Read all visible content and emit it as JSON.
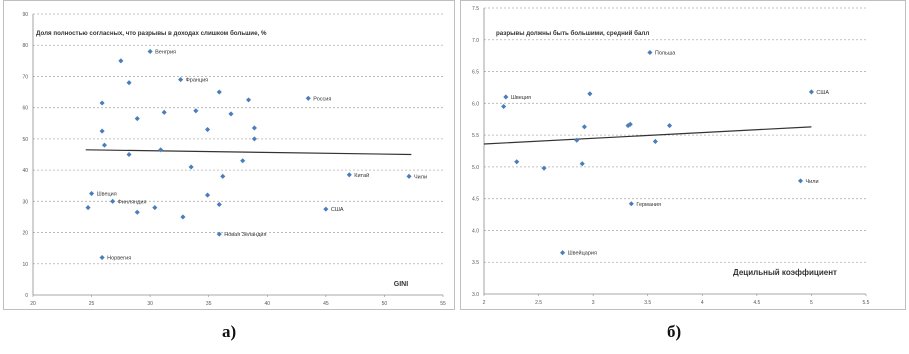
{
  "panel_labels": {
    "a": "а)",
    "b": "б)"
  },
  "chart_data": [
    {
      "type": "scatter",
      "title": "Доля полностью согласных, что разрывы в доходах слишком большие, %",
      "xlabel": "GINI",
      "ylabel": "",
      "xlim": [
        20,
        55
      ],
      "ylim": [
        0,
        90
      ],
      "xticks": [
        20,
        25,
        30,
        35,
        40,
        45,
        50,
        55
      ],
      "yticks": [
        0,
        10,
        20,
        30,
        40,
        50,
        60,
        70,
        80,
        90
      ],
      "grid": true,
      "color": "#4a7ebb",
      "points": [
        {
          "x": 24.7,
          "y": 28,
          "label": ""
        },
        {
          "x": 25.0,
          "y": 32.5,
          "label": "Швеция"
        },
        {
          "x": 25.9,
          "y": 52.5,
          "label": ""
        },
        {
          "x": 25.9,
          "y": 61.5,
          "label": ""
        },
        {
          "x": 26.1,
          "y": 48,
          "label": ""
        },
        {
          "x": 25.9,
          "y": 12,
          "label": "Норвегия"
        },
        {
          "x": 26.8,
          "y": 30,
          "label": "Финляндия"
        },
        {
          "x": 27.5,
          "y": 75,
          "label": ""
        },
        {
          "x": 28.2,
          "y": 68,
          "label": ""
        },
        {
          "x": 28.2,
          "y": 45,
          "label": ""
        },
        {
          "x": 28.9,
          "y": 56.5,
          "label": ""
        },
        {
          "x": 28.9,
          "y": 26.5,
          "label": ""
        },
        {
          "x": 30.0,
          "y": 78,
          "label": "Венгрия"
        },
        {
          "x": 30.4,
          "y": 28,
          "label": ""
        },
        {
          "x": 30.9,
          "y": 46.5,
          "label": ""
        },
        {
          "x": 31.2,
          "y": 58.5,
          "label": ""
        },
        {
          "x": 32.6,
          "y": 69,
          "label": "Франция"
        },
        {
          "x": 32.8,
          "y": 25,
          "label": ""
        },
        {
          "x": 33.5,
          "y": 41,
          "label": ""
        },
        {
          "x": 33.9,
          "y": 59,
          "label": ""
        },
        {
          "x": 34.9,
          "y": 53,
          "label": ""
        },
        {
          "x": 34.9,
          "y": 32,
          "label": ""
        },
        {
          "x": 35.9,
          "y": 65,
          "label": ""
        },
        {
          "x": 35.9,
          "y": 29,
          "label": ""
        },
        {
          "x": 36.2,
          "y": 38,
          "label": ""
        },
        {
          "x": 36.9,
          "y": 58,
          "label": ""
        },
        {
          "x": 37.9,
          "y": 43,
          "label": ""
        },
        {
          "x": 38.4,
          "y": 62.5,
          "label": ""
        },
        {
          "x": 38.9,
          "y": 53.5,
          "label": ""
        },
        {
          "x": 38.9,
          "y": 50,
          "label": ""
        },
        {
          "x": 35.9,
          "y": 19.5,
          "label": "Новая Зеландия"
        },
        {
          "x": 43.5,
          "y": 63,
          "label": "Россия"
        },
        {
          "x": 45.0,
          "y": 27.5,
          "label": "США"
        },
        {
          "x": 47.0,
          "y": 38.5,
          "label": "Китай"
        },
        {
          "x": 52.1,
          "y": 38,
          "label": "Чили"
        }
      ],
      "trendline": [
        [
          24.5,
          46.5
        ],
        [
          52.3,
          45
        ]
      ]
    },
    {
      "type": "scatter",
      "title": "разрывы должны быть большими, средний балл",
      "xlabel": "Децильный коэффициент",
      "ylabel": "",
      "xlim": [
        2,
        5.5
      ],
      "ylim": [
        3,
        7.5
      ],
      "xticks": [
        "2",
        "2.5",
        "3",
        "3.5",
        "4",
        "4.5",
        "5",
        "5.5"
      ],
      "yticks": [
        "3.0",
        "3.5",
        "4.0",
        "4.5",
        "5.0",
        "5.5",
        "6.0",
        "6.5",
        "7.0",
        "7.5"
      ],
      "grid": true,
      "color": "#4a7ebb",
      "points": [
        {
          "x": 2.2,
          "y": 6.1,
          "label": "Швеция"
        },
        {
          "x": 2.18,
          "y": 5.95,
          "label": ""
        },
        {
          "x": 2.3,
          "y": 5.08,
          "label": ""
        },
        {
          "x": 2.55,
          "y": 4.98,
          "label": ""
        },
        {
          "x": 2.72,
          "y": 3.65,
          "label": "Швейцария"
        },
        {
          "x": 2.85,
          "y": 5.42,
          "label": ""
        },
        {
          "x": 2.9,
          "y": 5.05,
          "label": ""
        },
        {
          "x": 2.92,
          "y": 5.63,
          "label": ""
        },
        {
          "x": 2.97,
          "y": 6.15,
          "label": ""
        },
        {
          "x": 3.32,
          "y": 5.65,
          "label": ""
        },
        {
          "x": 3.34,
          "y": 5.67,
          "label": ""
        },
        {
          "x": 3.35,
          "y": 4.42,
          "label": "Германия"
        },
        {
          "x": 3.52,
          "y": 6.8,
          "label": "Польша"
        },
        {
          "x": 3.57,
          "y": 5.4,
          "label": ""
        },
        {
          "x": 3.7,
          "y": 5.65,
          "label": ""
        },
        {
          "x": 4.9,
          "y": 4.78,
          "label": "Чили"
        },
        {
          "x": 5.0,
          "y": 6.18,
          "label": "США"
        }
      ],
      "trendline": [
        [
          2.0,
          5.36
        ],
        [
          5.0,
          5.63
        ]
      ]
    }
  ]
}
